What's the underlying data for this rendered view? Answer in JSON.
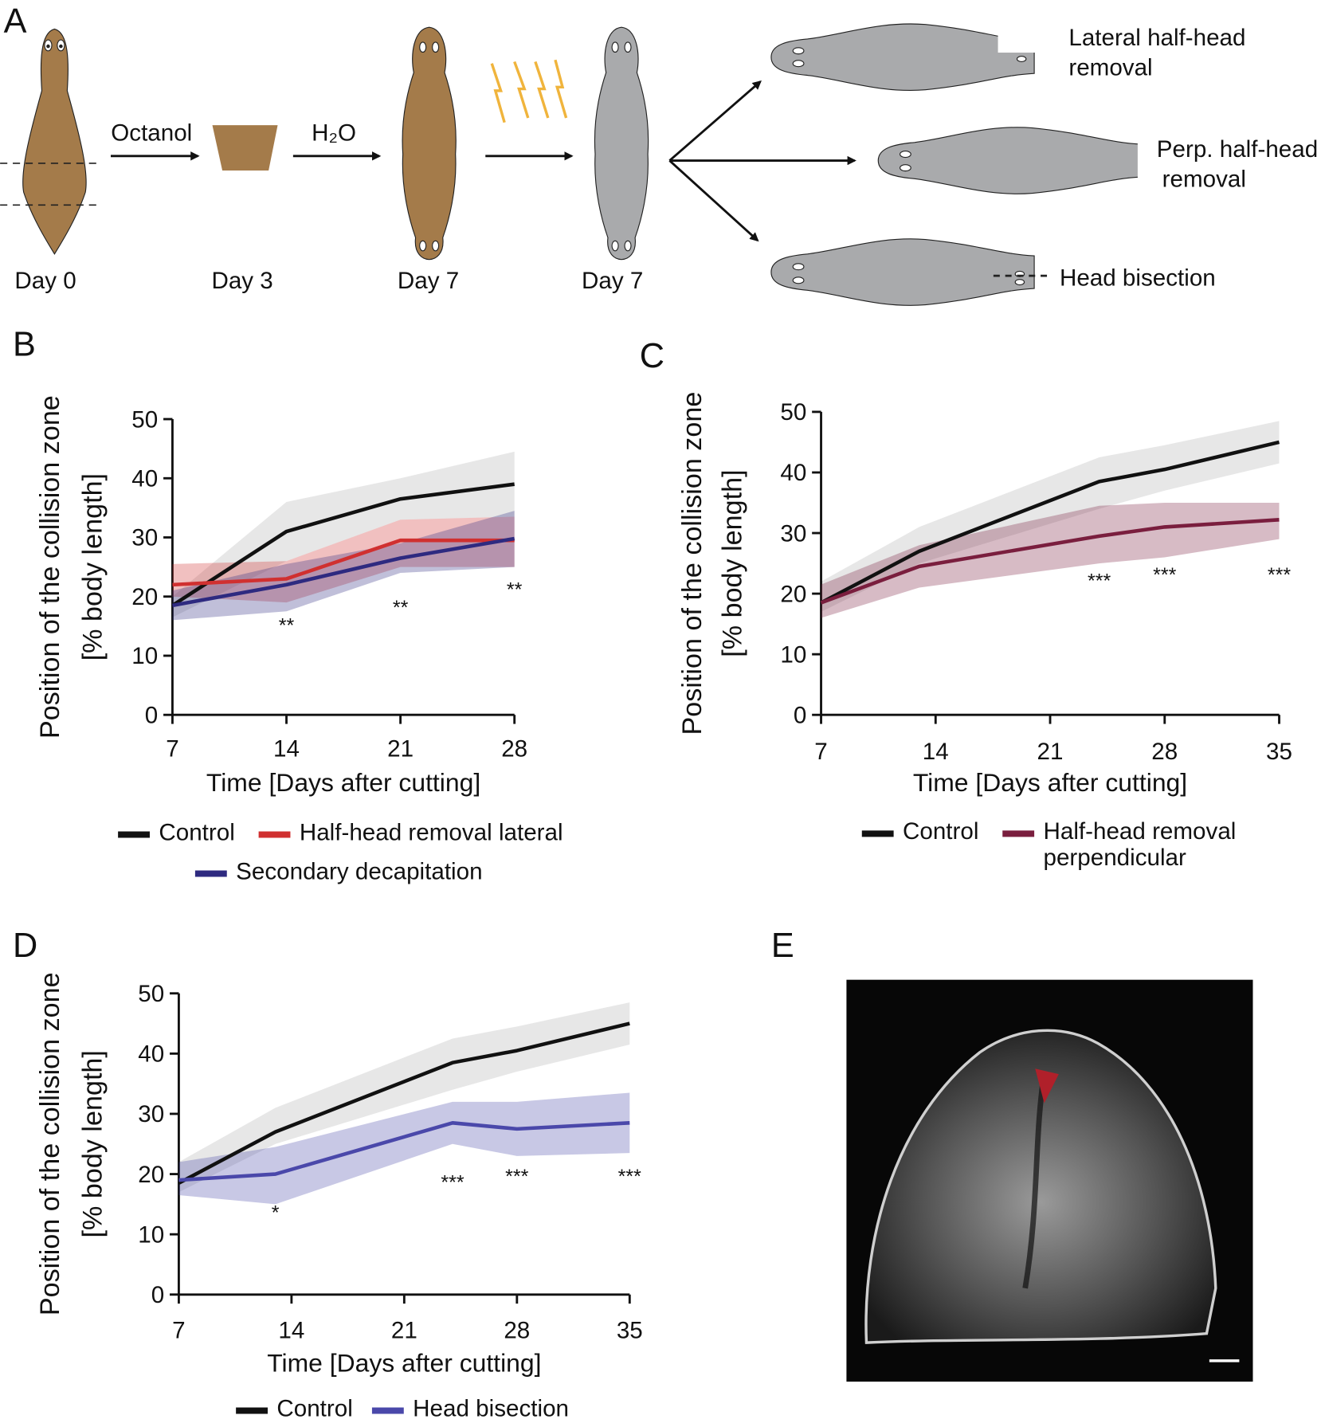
{
  "panel_labels": [
    "A",
    "B",
    "C",
    "D",
    "E"
  ],
  "diagram": {
    "reagents": [
      "Octanol",
      "H₂O"
    ],
    "days": [
      "Day 0",
      "Day 3",
      "Day 7",
      "Day 7"
    ],
    "outcomes": [
      [
        "Lateral half-head",
        "removal"
      ],
      [
        "Perp. half-head",
        "removal"
      ],
      [
        "Head bisection"
      ]
    ]
  },
  "chart_data": [
    {
      "type": "line",
      "x": [
        7,
        14,
        21,
        28
      ],
      "xlim": [
        7,
        28
      ],
      "xticks": [
        7,
        14,
        21,
        28
      ],
      "ylim": [
        0,
        50
      ],
      "yticks": [
        0,
        10,
        20,
        30,
        40,
        50
      ],
      "ylabel": [
        "Position of the collision zone",
        "[% body length]"
      ],
      "xlabel": "Time [Days after cutting]",
      "legend": "bottom",
      "series": [
        {
          "name": "Control",
          "color": "#111111",
          "values": [
            18.5,
            31,
            36.5,
            39
          ],
          "lower": [
            16.5,
            26,
            33,
            33.5
          ],
          "upper": [
            20,
            36,
            40,
            44.5
          ]
        },
        {
          "name": "Half-head removal lateral",
          "color": "#d03030",
          "values": [
            22,
            23,
            29.5,
            29.5
          ],
          "lower": [
            20,
            19,
            25,
            25
          ],
          "upper": [
            25.5,
            26,
            33,
            33.5
          ]
        },
        {
          "name": "Secondary decapitation",
          "color": "#2e2a80",
          "values": [
            18.5,
            22,
            26.5,
            29.8
          ],
          "lower": [
            16,
            17.5,
            24,
            25
          ],
          "upper": [
            21,
            25.5,
            29,
            34.5
          ]
        }
      ],
      "annotations": [
        {
          "text": "**",
          "x": 14,
          "y": 14
        },
        {
          "text": "**",
          "x": 21,
          "y": 17
        },
        {
          "text": "**",
          "x": 28,
          "y": 20
        }
      ]
    },
    {
      "type": "line",
      "x": [
        7,
        13,
        24,
        28,
        35
      ],
      "xlim": [
        7,
        35
      ],
      "xticks": [
        7,
        14,
        21,
        28,
        35
      ],
      "ylim": [
        0,
        50
      ],
      "yticks": [
        0,
        10,
        20,
        30,
        40,
        50
      ],
      "ylabel": [
        "Position of the collision zone",
        "[% body length]"
      ],
      "xlabel": "Time [Days after cutting]",
      "legend": "bottom",
      "series": [
        {
          "name": "Control",
          "color": "#111111",
          "values": [
            18.5,
            27,
            38.5,
            40.5,
            45
          ],
          "lower": [
            17,
            25,
            34,
            37,
            41.5
          ],
          "upper": [
            22,
            31,
            42.5,
            44.5,
            48.5
          ]
        },
        {
          "name": "Half-head removal perpendicular",
          "color": "#7a1e3e",
          "values": [
            18.5,
            24.5,
            29.5,
            31,
            32.2
          ],
          "lower": [
            16,
            21,
            25,
            26,
            29
          ],
          "upper": [
            21.5,
            28,
            34.5,
            35,
            35
          ]
        }
      ],
      "annotations": [
        {
          "text": "***",
          "x": 24,
          "y": 21
        },
        {
          "text": "***",
          "x": 28,
          "y": 22
        },
        {
          "text": "***",
          "x": 35,
          "y": 22
        }
      ]
    },
    {
      "type": "line",
      "x": [
        7,
        13,
        24,
        28,
        35
      ],
      "xlim": [
        7,
        35
      ],
      "xticks": [
        7,
        14,
        21,
        28,
        35
      ],
      "ylim": [
        0,
        50
      ],
      "yticks": [
        0,
        10,
        20,
        30,
        40,
        50
      ],
      "ylabel": [
        "Position of the collision zone",
        "[% body length]"
      ],
      "xlabel": "Time [Days after cutting]",
      "legend": "bottom",
      "series": [
        {
          "name": "Control",
          "color": "#111111",
          "values": [
            18.5,
            27,
            38.5,
            40.5,
            45
          ],
          "lower": [
            17,
            25,
            34,
            37,
            41.5
          ],
          "upper": [
            22,
            31,
            42.5,
            44.5,
            48.5
          ]
        },
        {
          "name": "Head bisection",
          "color": "#4a48aa",
          "values": [
            19,
            20,
            28.5,
            27.5,
            28.5
          ],
          "lower": [
            16.5,
            15,
            25,
            23,
            23.5
          ],
          "upper": [
            22,
            24.5,
            32,
            32,
            33.5
          ]
        }
      ],
      "annotations": [
        {
          "text": "*",
          "x": 13,
          "y": 12.5
        },
        {
          "text": "***",
          "x": 24,
          "y": 17.5
        },
        {
          "text": "***",
          "x": 28,
          "y": 18.5
        },
        {
          "text": "***",
          "x": 35,
          "y": 18.5
        }
      ]
    }
  ]
}
